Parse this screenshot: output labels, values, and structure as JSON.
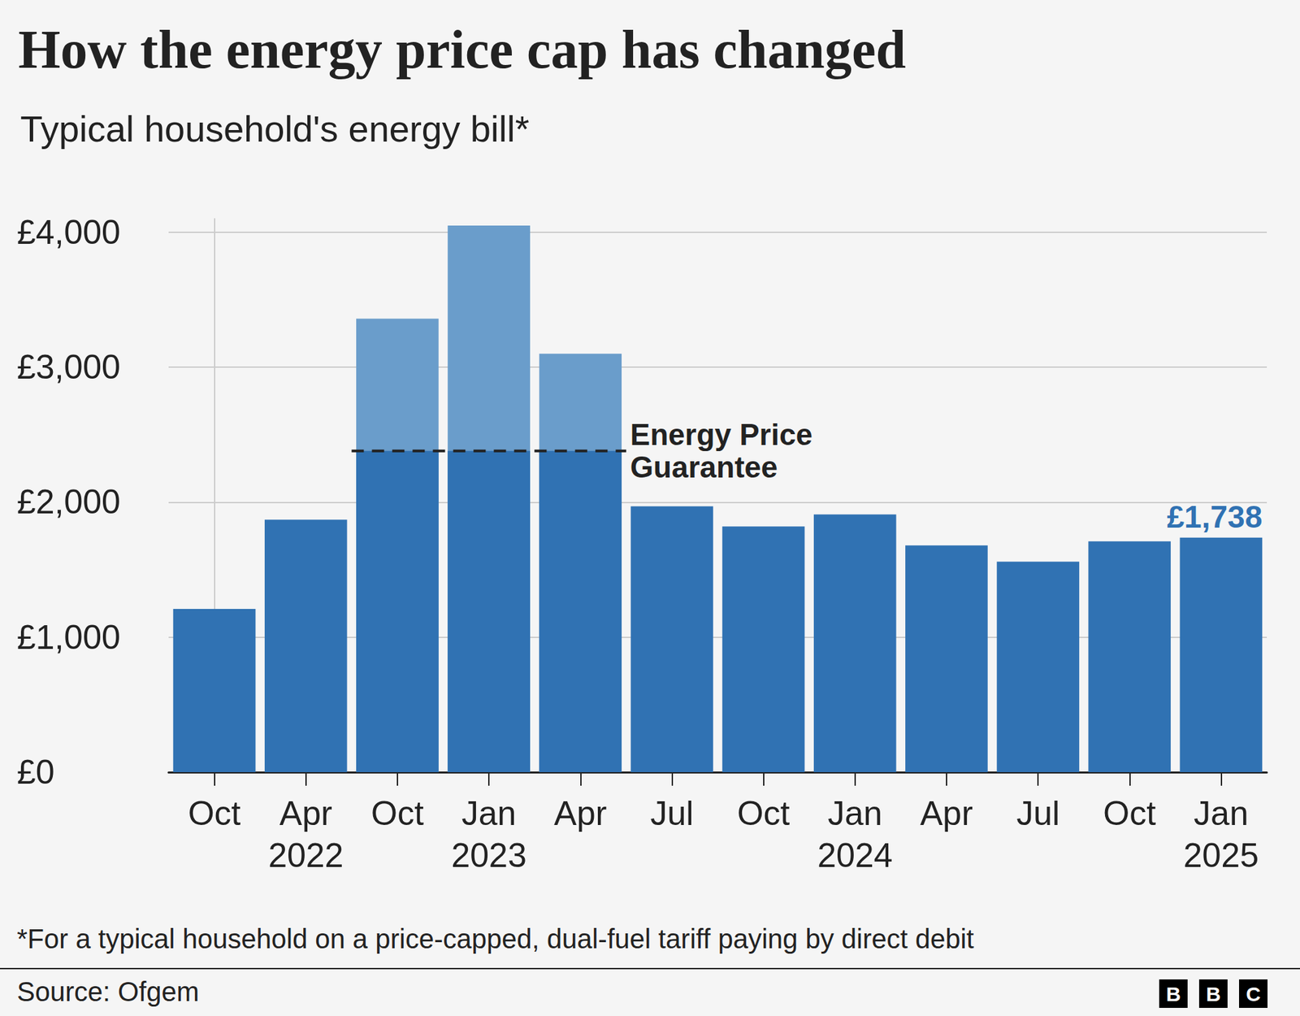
{
  "chart_data": {
    "type": "bar",
    "title": "How the energy price cap has changed",
    "subtitle": "Typical household's energy bill*",
    "categories": [
      "Oct",
      "Apr\n2022",
      "Oct",
      "Jan\n2023",
      "Apr",
      "Jul",
      "Oct",
      "Jan\n2024",
      "Apr",
      "Jul",
      "Oct",
      "Jan\n2025"
    ],
    "values": [
      1210,
      1870,
      3360,
      4050,
      3100,
      1970,
      1820,
      1910,
      1680,
      1560,
      1710,
      1738
    ],
    "value_labels": [
      null,
      null,
      null,
      null,
      null,
      null,
      null,
      null,
      null,
      null,
      null,
      "£1,738"
    ],
    "data_labels": true,
    "color": "#3072b3",
    "colors": [
      "#3072b3",
      "#3072b3",
      "#6a9dcb",
      "#6a9dcb",
      "#6a9dcb",
      "#3072b3",
      "#3072b3",
      "#3072b3",
      "#3072b3",
      "#3072b3",
      "#3072b3",
      "#3072b3"
    ],
    "price_guarantee": {
      "label": "Energy Price\nGuarantee",
      "values": [
        null,
        null,
        2380,
        2380,
        2380,
        null,
        null,
        null,
        null,
        null,
        null,
        null
      ],
      "color": "#222222",
      "line_style": "dashed"
    },
    "ylim": [
      0,
      4100
    ],
    "yticks": [
      {
        "value": 0,
        "label": "£0"
      },
      {
        "value": 1000,
        "label": "£1,000"
      },
      {
        "value": 2000,
        "label": "£2,000"
      },
      {
        "value": 3000,
        "label": "£3,000"
      },
      {
        "value": 4000,
        "label": "£4,000"
      }
    ],
    "grid": true,
    "footnote": "*For a typical household on a price-capped, dual-fuel tariff paying by direct debit",
    "source": "Source: Ofgem",
    "logo": "BBC"
  }
}
